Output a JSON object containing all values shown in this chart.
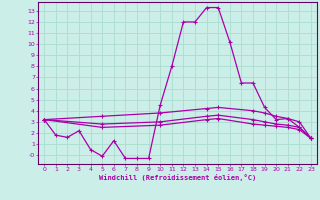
{
  "xlabel": "Windchill (Refroidissement éolien,°C)",
  "background_color": "#cceee8",
  "grid_color": "#aaddcc",
  "line_color": "#aa00aa",
  "spine_color": "#660066",
  "xlim": [
    -0.5,
    23.5
  ],
  "ylim": [
    -0.8,
    13.8
  ],
  "yticks": [
    0,
    1,
    2,
    3,
    4,
    5,
    6,
    7,
    8,
    9,
    10,
    11,
    12,
    13
  ],
  "yticklabels": [
    "-0",
    "1",
    "2",
    "3",
    "4",
    "5",
    "6",
    "7",
    "8",
    "9",
    "10",
    "11",
    "12",
    "13"
  ],
  "xticks": [
    0,
    1,
    2,
    3,
    4,
    5,
    6,
    7,
    8,
    9,
    10,
    11,
    12,
    13,
    14,
    15,
    16,
    17,
    18,
    19,
    20,
    21,
    22,
    23
  ],
  "xticklabels": [
    "0",
    "1",
    "2",
    "3",
    "4",
    "5",
    "6",
    "7",
    "8",
    "9",
    "10",
    "11",
    "12",
    "13",
    "14",
    "15",
    "16",
    "17",
    "18",
    "19",
    "20",
    "21",
    "22",
    "23"
  ],
  "line1_x": [
    0,
    1,
    2,
    3,
    4,
    5,
    6,
    7,
    8,
    9,
    10,
    11,
    12,
    13,
    14,
    15,
    16,
    17,
    18,
    19,
    20,
    21,
    22,
    23
  ],
  "line1_y": [
    3.2,
    1.8,
    1.6,
    2.2,
    0.5,
    -0.1,
    1.3,
    -0.3,
    -0.3,
    -0.3,
    4.5,
    8.0,
    12.0,
    12.0,
    13.3,
    13.3,
    10.2,
    6.5,
    6.5,
    4.3,
    3.2,
    3.3,
    2.5,
    1.5
  ],
  "line2_x": [
    0,
    5,
    10,
    14,
    15,
    18,
    19,
    20,
    21,
    22,
    23
  ],
  "line2_y": [
    3.2,
    3.5,
    3.8,
    4.2,
    4.3,
    4.0,
    3.8,
    3.5,
    3.3,
    3.0,
    1.5
  ],
  "line3_x": [
    0,
    5,
    10,
    14,
    15,
    18,
    19,
    20,
    21,
    22,
    23
  ],
  "line3_y": [
    3.2,
    2.8,
    3.0,
    3.5,
    3.6,
    3.2,
    3.0,
    2.8,
    2.7,
    2.5,
    1.5
  ],
  "line4_x": [
    0,
    5,
    10,
    14,
    15,
    18,
    19,
    20,
    21,
    22,
    23
  ],
  "line4_y": [
    3.2,
    2.5,
    2.7,
    3.2,
    3.3,
    2.8,
    2.7,
    2.6,
    2.5,
    2.3,
    1.5
  ]
}
